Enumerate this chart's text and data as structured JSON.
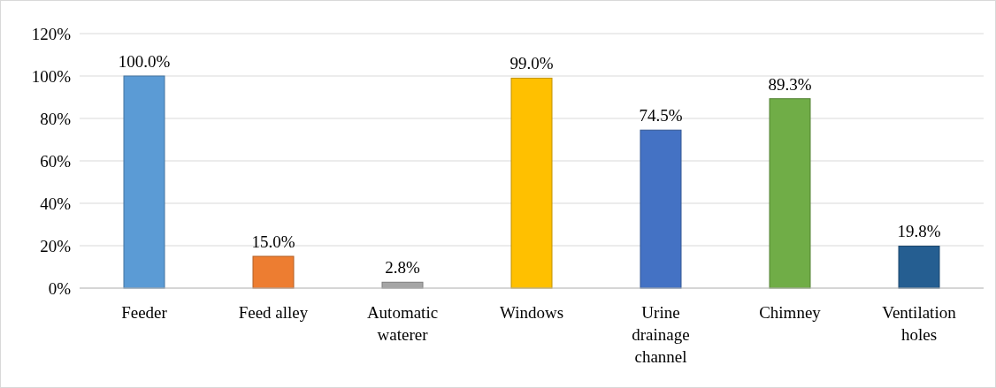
{
  "chart_data": {
    "type": "bar",
    "categories": [
      "Feeder",
      "Feed alley",
      "Automatic waterer",
      "Windows",
      "Urine drainage channel",
      "Chimney",
      "Ventilation holes"
    ],
    "values": [
      100,
      15,
      2.8,
      99,
      74.5,
      89.3,
      19.8
    ],
    "colors": [
      "#5b9bd5",
      "#ed7d31",
      "#a5a5a5",
      "#ffc000",
      "#4472c4",
      "#70ad47",
      "#255e91"
    ],
    "value_labels": [
      "100.0%",
      "15.0%",
      "2.8%",
      "99.0%",
      "74.5%",
      "89.3%",
      "19.8%"
    ],
    "ylim": [
      0,
      120
    ],
    "yticks": [
      {
        "value": 0,
        "label": "0%"
      },
      {
        "value": 20,
        "label": "20%"
      },
      {
        "value": 40,
        "label": "40%"
      },
      {
        "value": 60,
        "label": "60%"
      },
      {
        "value": 80,
        "label": "80%"
      },
      {
        "value": 100,
        "label": "100%"
      },
      {
        "value": 120,
        "label": "120%"
      }
    ],
    "grid": "y"
  }
}
